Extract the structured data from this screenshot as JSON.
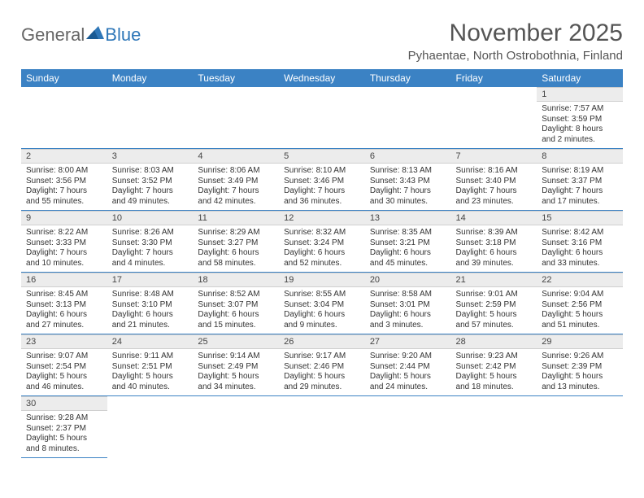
{
  "logo": {
    "general": "General",
    "blue": "Blue"
  },
  "month_title": "November 2025",
  "location": "Pyhaentae, North Ostrobothnia, Finland",
  "colors": {
    "header_bg": "#3b82c4",
    "header_text": "#ffffff",
    "grid_line": "#3b82c4",
    "daynum_bg": "#ececec",
    "logo_blue": "#2f77b8"
  },
  "day_headers": [
    "Sunday",
    "Monday",
    "Tuesday",
    "Wednesday",
    "Thursday",
    "Friday",
    "Saturday"
  ],
  "weeks": [
    [
      null,
      null,
      null,
      null,
      null,
      null,
      {
        "n": "1",
        "sunrise": "Sunrise: 7:57 AM",
        "sunset": "Sunset: 3:59 PM",
        "day1": "Daylight: 8 hours",
        "day2": "and 2 minutes."
      }
    ],
    [
      {
        "n": "2",
        "sunrise": "Sunrise: 8:00 AM",
        "sunset": "Sunset: 3:56 PM",
        "day1": "Daylight: 7 hours",
        "day2": "and 55 minutes."
      },
      {
        "n": "3",
        "sunrise": "Sunrise: 8:03 AM",
        "sunset": "Sunset: 3:52 PM",
        "day1": "Daylight: 7 hours",
        "day2": "and 49 minutes."
      },
      {
        "n": "4",
        "sunrise": "Sunrise: 8:06 AM",
        "sunset": "Sunset: 3:49 PM",
        "day1": "Daylight: 7 hours",
        "day2": "and 42 minutes."
      },
      {
        "n": "5",
        "sunrise": "Sunrise: 8:10 AM",
        "sunset": "Sunset: 3:46 PM",
        "day1": "Daylight: 7 hours",
        "day2": "and 36 minutes."
      },
      {
        "n": "6",
        "sunrise": "Sunrise: 8:13 AM",
        "sunset": "Sunset: 3:43 PM",
        "day1": "Daylight: 7 hours",
        "day2": "and 30 minutes."
      },
      {
        "n": "7",
        "sunrise": "Sunrise: 8:16 AM",
        "sunset": "Sunset: 3:40 PM",
        "day1": "Daylight: 7 hours",
        "day2": "and 23 minutes."
      },
      {
        "n": "8",
        "sunrise": "Sunrise: 8:19 AM",
        "sunset": "Sunset: 3:37 PM",
        "day1": "Daylight: 7 hours",
        "day2": "and 17 minutes."
      }
    ],
    [
      {
        "n": "9",
        "sunrise": "Sunrise: 8:22 AM",
        "sunset": "Sunset: 3:33 PM",
        "day1": "Daylight: 7 hours",
        "day2": "and 10 minutes."
      },
      {
        "n": "10",
        "sunrise": "Sunrise: 8:26 AM",
        "sunset": "Sunset: 3:30 PM",
        "day1": "Daylight: 7 hours",
        "day2": "and 4 minutes."
      },
      {
        "n": "11",
        "sunrise": "Sunrise: 8:29 AM",
        "sunset": "Sunset: 3:27 PM",
        "day1": "Daylight: 6 hours",
        "day2": "and 58 minutes."
      },
      {
        "n": "12",
        "sunrise": "Sunrise: 8:32 AM",
        "sunset": "Sunset: 3:24 PM",
        "day1": "Daylight: 6 hours",
        "day2": "and 52 minutes."
      },
      {
        "n": "13",
        "sunrise": "Sunrise: 8:35 AM",
        "sunset": "Sunset: 3:21 PM",
        "day1": "Daylight: 6 hours",
        "day2": "and 45 minutes."
      },
      {
        "n": "14",
        "sunrise": "Sunrise: 8:39 AM",
        "sunset": "Sunset: 3:18 PM",
        "day1": "Daylight: 6 hours",
        "day2": "and 39 minutes."
      },
      {
        "n": "15",
        "sunrise": "Sunrise: 8:42 AM",
        "sunset": "Sunset: 3:16 PM",
        "day1": "Daylight: 6 hours",
        "day2": "and 33 minutes."
      }
    ],
    [
      {
        "n": "16",
        "sunrise": "Sunrise: 8:45 AM",
        "sunset": "Sunset: 3:13 PM",
        "day1": "Daylight: 6 hours",
        "day2": "and 27 minutes."
      },
      {
        "n": "17",
        "sunrise": "Sunrise: 8:48 AM",
        "sunset": "Sunset: 3:10 PM",
        "day1": "Daylight: 6 hours",
        "day2": "and 21 minutes."
      },
      {
        "n": "18",
        "sunrise": "Sunrise: 8:52 AM",
        "sunset": "Sunset: 3:07 PM",
        "day1": "Daylight: 6 hours",
        "day2": "and 15 minutes."
      },
      {
        "n": "19",
        "sunrise": "Sunrise: 8:55 AM",
        "sunset": "Sunset: 3:04 PM",
        "day1": "Daylight: 6 hours",
        "day2": "and 9 minutes."
      },
      {
        "n": "20",
        "sunrise": "Sunrise: 8:58 AM",
        "sunset": "Sunset: 3:01 PM",
        "day1": "Daylight: 6 hours",
        "day2": "and 3 minutes."
      },
      {
        "n": "21",
        "sunrise": "Sunrise: 9:01 AM",
        "sunset": "Sunset: 2:59 PM",
        "day1": "Daylight: 5 hours",
        "day2": "and 57 minutes."
      },
      {
        "n": "22",
        "sunrise": "Sunrise: 9:04 AM",
        "sunset": "Sunset: 2:56 PM",
        "day1": "Daylight: 5 hours",
        "day2": "and 51 minutes."
      }
    ],
    [
      {
        "n": "23",
        "sunrise": "Sunrise: 9:07 AM",
        "sunset": "Sunset: 2:54 PM",
        "day1": "Daylight: 5 hours",
        "day2": "and 46 minutes."
      },
      {
        "n": "24",
        "sunrise": "Sunrise: 9:11 AM",
        "sunset": "Sunset: 2:51 PM",
        "day1": "Daylight: 5 hours",
        "day2": "and 40 minutes."
      },
      {
        "n": "25",
        "sunrise": "Sunrise: 9:14 AM",
        "sunset": "Sunset: 2:49 PM",
        "day1": "Daylight: 5 hours",
        "day2": "and 34 minutes."
      },
      {
        "n": "26",
        "sunrise": "Sunrise: 9:17 AM",
        "sunset": "Sunset: 2:46 PM",
        "day1": "Daylight: 5 hours",
        "day2": "and 29 minutes."
      },
      {
        "n": "27",
        "sunrise": "Sunrise: 9:20 AM",
        "sunset": "Sunset: 2:44 PM",
        "day1": "Daylight: 5 hours",
        "day2": "and 24 minutes."
      },
      {
        "n": "28",
        "sunrise": "Sunrise: 9:23 AM",
        "sunset": "Sunset: 2:42 PM",
        "day1": "Daylight: 5 hours",
        "day2": "and 18 minutes."
      },
      {
        "n": "29",
        "sunrise": "Sunrise: 9:26 AM",
        "sunset": "Sunset: 2:39 PM",
        "day1": "Daylight: 5 hours",
        "day2": "and 13 minutes."
      }
    ],
    [
      {
        "n": "30",
        "sunrise": "Sunrise: 9:28 AM",
        "sunset": "Sunset: 2:37 PM",
        "day1": "Daylight: 5 hours",
        "day2": "and 8 minutes."
      },
      null,
      null,
      null,
      null,
      null,
      null
    ]
  ]
}
